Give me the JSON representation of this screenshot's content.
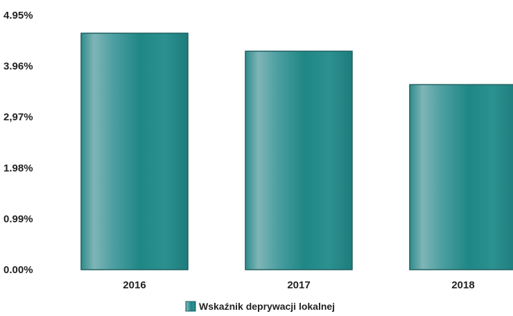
{
  "chart_data": {
    "type": "bar",
    "categories": [
      "2016",
      "2017",
      "2018"
    ],
    "series": [
      {
        "name": "Wskaźnik deprywacji lokalnej",
        "values": [
          4.6,
          4.25,
          3.6
        ],
        "color": "#2e8f8f"
      }
    ],
    "ytick_labels": [
      "0.00%",
      "0.99%",
      "1.98%",
      "2,97%",
      "3.96%",
      "4.95%"
    ],
    "ytick_values": [
      0,
      0.99,
      1.98,
      2.97,
      3.96,
      4.95
    ],
    "ylim": [
      0,
      4.95
    ],
    "grid": false,
    "legend_position": "bottom-center",
    "title": "",
    "xlabel": "",
    "ylabel": ""
  }
}
